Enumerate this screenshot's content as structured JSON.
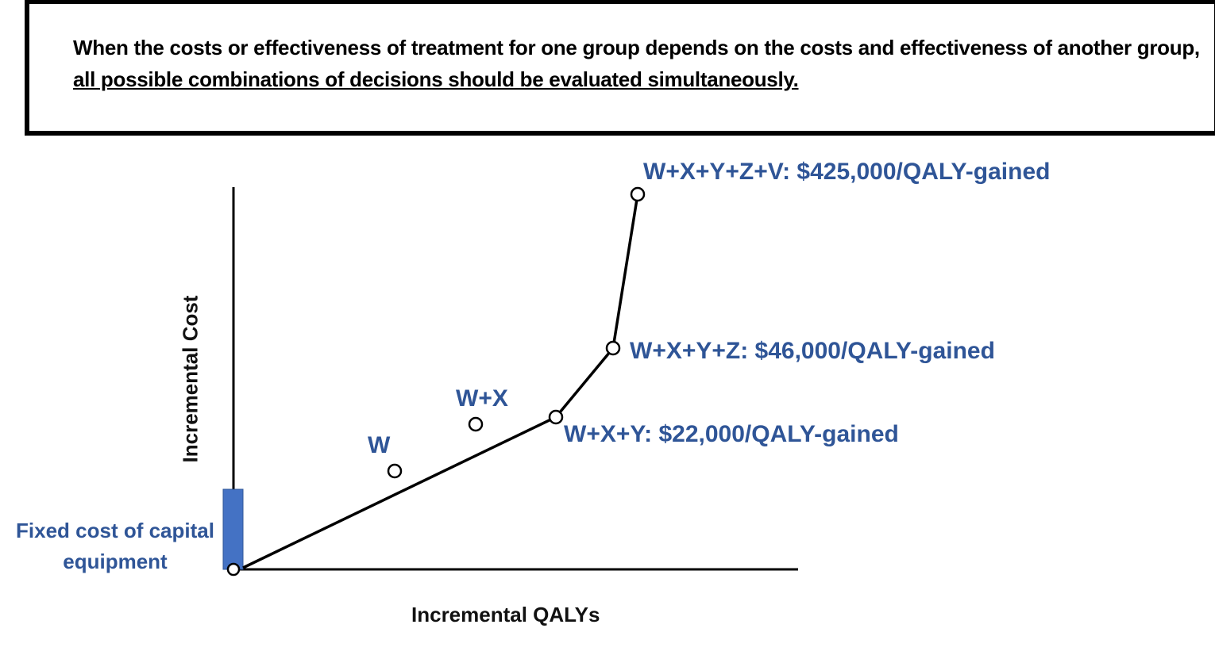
{
  "header": {
    "text_plain": "When the costs or effectiveness of treatment for one group depends on the costs and effectiveness of another group, ",
    "text_underlined": "all possible combinations of decisions should be evaluated simultaneously."
  },
  "diagram": {
    "x_axis_label": "Incremental QALYs",
    "y_axis_label": "Incremental Cost",
    "fixed_cost_label": "Fixed cost of capital equipment",
    "points": [
      {
        "label": "W",
        "on_frontier": false
      },
      {
        "label": "W+X",
        "on_frontier": false
      },
      {
        "label": "W+X+Y: $22,000/QALY-gained",
        "on_frontier": true
      },
      {
        "label": "W+X+Y+Z: $46,000/QALY-gained",
        "on_frontier": true
      },
      {
        "label": "W+X+Y+Z+V:  $425,000/QALY-gained",
        "on_frontier": true
      }
    ],
    "colors": {
      "label": "#2F5597",
      "fixed_bar": "#4472C4",
      "line": "#000000"
    }
  }
}
